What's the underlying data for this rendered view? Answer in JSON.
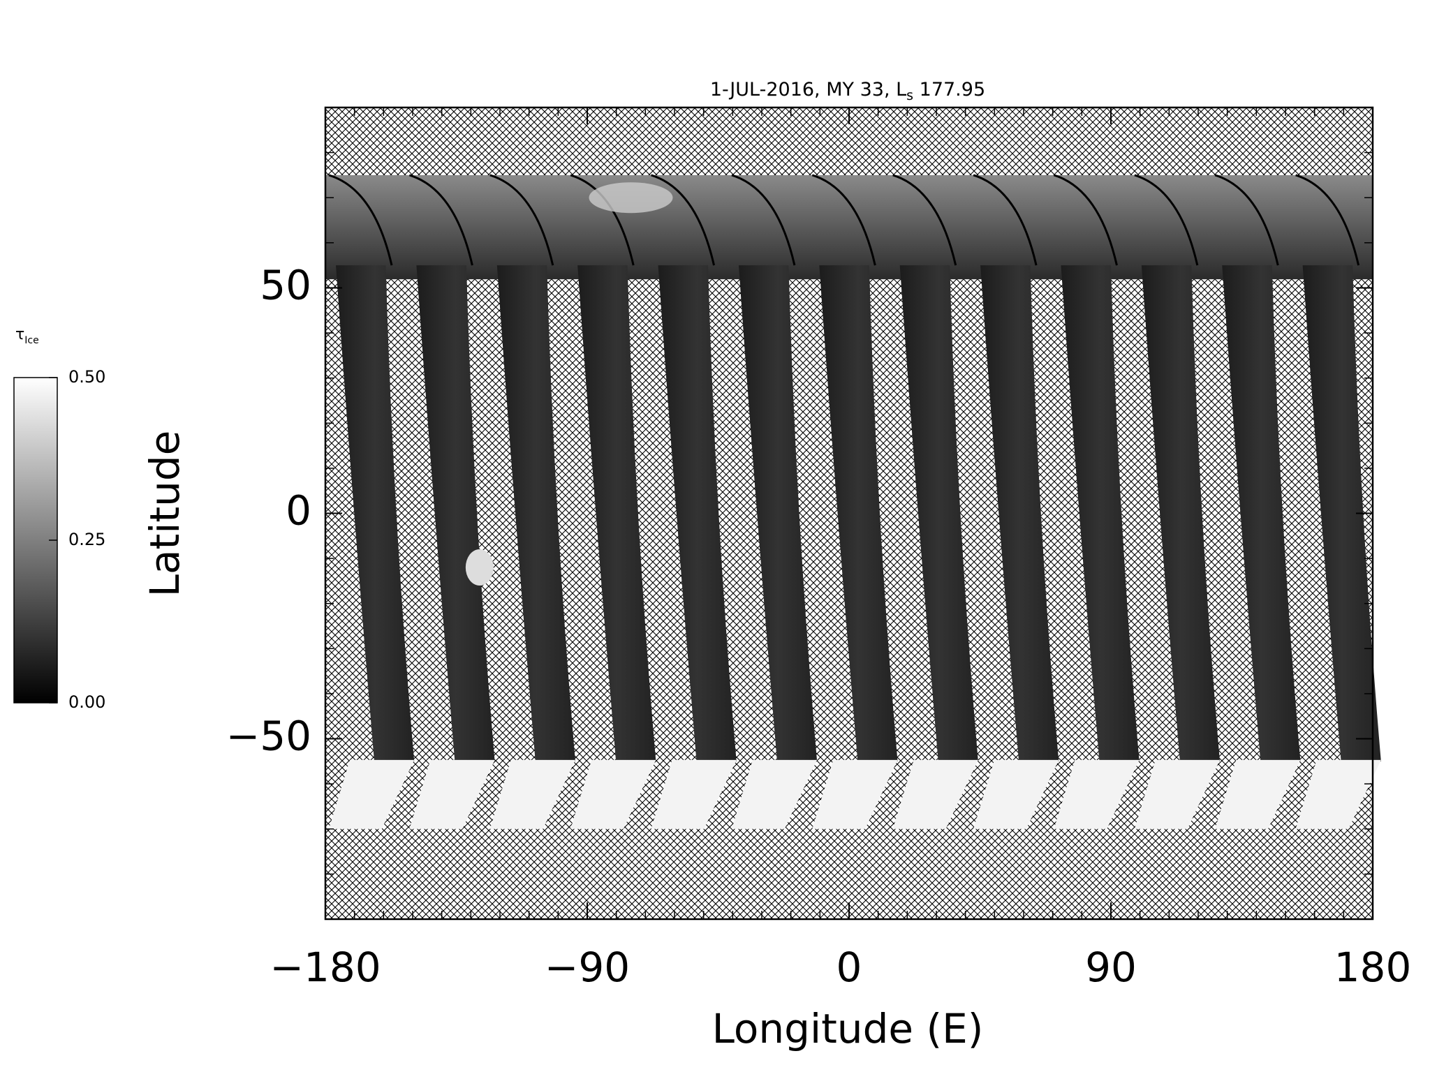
{
  "chart_data": {
    "type": "map",
    "title": {
      "main": "1-JUL-2016, MY 33,  L",
      "sub": "s",
      "rest": " 177.95"
    },
    "xlabel": "Longitude (E)",
    "ylabel": "Latitude",
    "xlim": [
      -180,
      180
    ],
    "xticks": [
      {
        "value": -180,
        "label": "−180"
      },
      {
        "value": -90,
        "label": "−90"
      },
      0,
      90,
      180
    ],
    "ylim": [
      -90,
      90
    ],
    "yticks": [
      {
        "value": -50,
        "label": "−50"
      },
      0,
      50
    ],
    "xminor_step": 10,
    "yminor_step": 10,
    "colorbar": {
      "label": {
        "symbol": "τ",
        "sub": "Ice"
      },
      "lim": [
        0,
        0.5
      ],
      "ticks": [
        {
          "value": 0,
          "label": "0.00"
        },
        {
          "value": 0.25,
          "label": "0.25"
        },
        {
          "value": 0.5,
          "label": "0.50"
        }
      ],
      "colors": [
        "#000000",
        "#ffffff"
      ]
    }
  }
}
